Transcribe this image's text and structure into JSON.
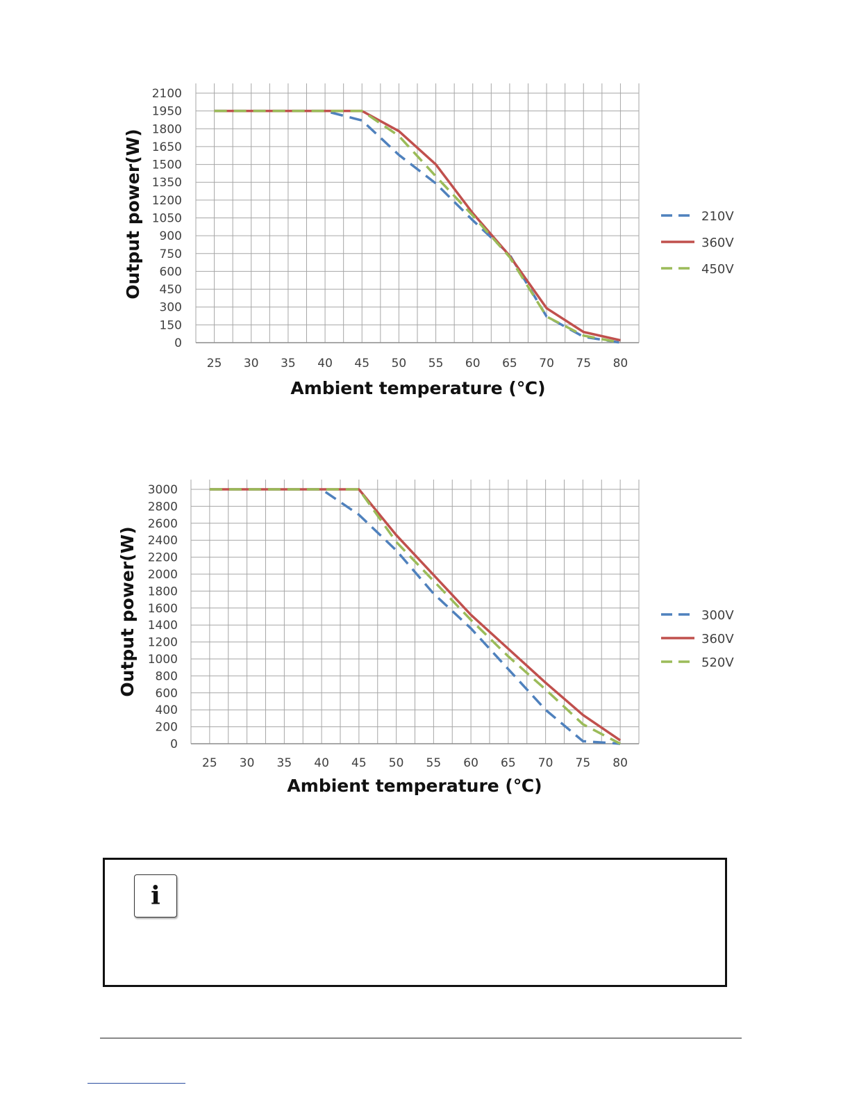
{
  "chart_data": [
    {
      "type": "line",
      "title": "",
      "xlabel": "Ambient temperature (℃)",
      "ylabel": "Output power(W)",
      "x_ticks": [
        "25",
        "30",
        "35",
        "40",
        "45",
        "50",
        "55",
        "60",
        "65",
        "70",
        "75",
        "80"
      ],
      "y_ticks": [
        "0",
        "150",
        "300",
        "450",
        "600",
        "750",
        "900",
        "1050",
        "1200",
        "1350",
        "1500",
        "1650",
        "1800",
        "1950",
        "2100"
      ],
      "xlim": [
        22.5,
        82.5
      ],
      "ylim": [
        0,
        2100
      ],
      "grid": true,
      "legend_position": "right",
      "series": [
        {
          "name": "210V",
          "color": "#4f81bd",
          "style": "dashed",
          "x": [
            25,
            40,
            45,
            50,
            55,
            60,
            65,
            70,
            75,
            80
          ],
          "y": [
            1950,
            1950,
            1870,
            1580,
            1340,
            1030,
            740,
            220,
            50,
            0
          ]
        },
        {
          "name": "360V",
          "color": "#c0504d",
          "style": "solid",
          "x": [
            25,
            45,
            50,
            55,
            60,
            65,
            70,
            75,
            80
          ],
          "y": [
            1950,
            1950,
            1780,
            1500,
            1090,
            730,
            290,
            90,
            20
          ]
        },
        {
          "name": "450V",
          "color": "#9bbb59",
          "style": "dashed",
          "x": [
            25,
            45,
            50,
            55,
            60,
            65,
            70,
            75,
            80
          ],
          "y": [
            1950,
            1950,
            1740,
            1400,
            1070,
            720,
            220,
            60,
            0
          ]
        }
      ]
    },
    {
      "type": "line",
      "title": "",
      "xlabel": "Ambient temperature (℃)",
      "ylabel": "Output power(W)",
      "x_ticks": [
        "25",
        "30",
        "35",
        "40",
        "45",
        "50",
        "55",
        "60",
        "65",
        "70",
        "75",
        "80"
      ],
      "y_ticks": [
        "0",
        "200",
        "400",
        "600",
        "800",
        "1000",
        "1200",
        "1400",
        "1600",
        "1800",
        "2000",
        "2200",
        "2400",
        "2600",
        "2800",
        "3000"
      ],
      "xlim": [
        22.5,
        82.5
      ],
      "ylim": [
        0,
        3000
      ],
      "grid": true,
      "legend_position": "right",
      "series": [
        {
          "name": "300V",
          "color": "#4f81bd",
          "style": "dashed",
          "x": [
            25,
            40,
            45,
            50,
            55,
            60,
            65,
            70,
            75,
            80
          ],
          "y": [
            3000,
            3000,
            2700,
            2280,
            1770,
            1360,
            880,
            400,
            30,
            0
          ]
        },
        {
          "name": "360V",
          "color": "#c0504d",
          "style": "solid",
          "x": [
            25,
            45,
            50,
            55,
            60,
            65,
            70,
            75,
            80
          ],
          "y": [
            3000,
            3000,
            2460,
            1990,
            1520,
            1120,
            720,
            340,
            40
          ]
        },
        {
          "name": "520V",
          "color": "#9bbb59",
          "style": "dashed",
          "x": [
            25,
            45,
            50,
            55,
            60,
            65,
            70,
            75,
            80
          ],
          "y": [
            3000,
            3000,
            2380,
            1920,
            1460,
            1030,
            640,
            230,
            0
          ]
        }
      ]
    }
  ],
  "note": {
    "icon": "info-icon",
    "icon_glyph": "i"
  }
}
